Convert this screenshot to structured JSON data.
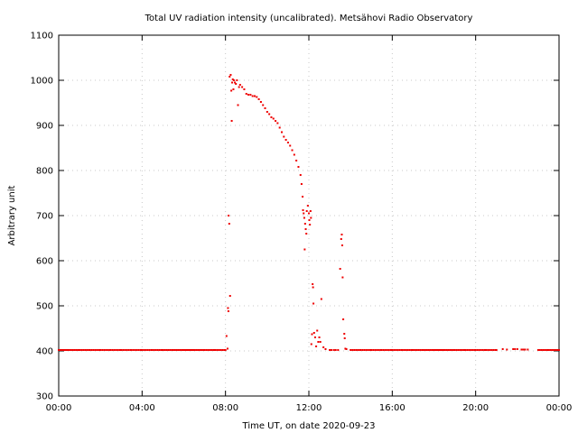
{
  "chart_data": {
    "type": "scatter",
    "title": "Total UV radiation intensity (uncalibrated). Metsähovi Radio Observatory",
    "xlabel": "Time UT, on date 2020-09-23",
    "ylabel": "Arbitrary unit",
    "xlim": [
      0,
      24
    ],
    "ylim": [
      300,
      1100
    ],
    "x_ticks": [
      0,
      4,
      8,
      12,
      16,
      20,
      24
    ],
    "x_tick_labels": [
      "00:00",
      "04:00",
      "08:00",
      "12:00",
      "16:00",
      "20:00",
      "00:00"
    ],
    "y_ticks": [
      300,
      400,
      500,
      600,
      700,
      800,
      900,
      1000,
      1100
    ],
    "y_tick_labels": [
      "300",
      "400",
      "500",
      "600",
      "700",
      "800",
      "900",
      "1000",
      "1100"
    ],
    "grid": true,
    "legend": "none",
    "series": [
      {
        "color": "#ee0000",
        "marker": "dot",
        "points": [
          [
            0.0,
            402
          ],
          [
            0.5,
            402
          ],
          [
            1.0,
            402
          ],
          [
            1.5,
            402
          ],
          [
            2.0,
            402
          ],
          [
            2.5,
            402
          ],
          [
            3.0,
            402
          ],
          [
            3.5,
            402
          ],
          [
            4.0,
            402
          ],
          [
            4.5,
            402
          ],
          [
            5.0,
            402
          ],
          [
            5.5,
            402
          ],
          [
            6.0,
            402
          ],
          [
            6.5,
            402
          ],
          [
            7.0,
            402
          ],
          [
            7.5,
            402
          ],
          [
            8.0,
            402
          ],
          [
            8.05,
            433
          ],
          [
            8.1,
            405
          ],
          [
            8.12,
            495
          ],
          [
            8.14,
            488
          ],
          [
            8.15,
            700
          ],
          [
            8.18,
            682
          ],
          [
            8.2,
            1008
          ],
          [
            8.22,
            522
          ],
          [
            8.25,
            1012
          ],
          [
            8.28,
            977
          ],
          [
            8.3,
            910
          ],
          [
            8.32,
            995
          ],
          [
            8.35,
            1002
          ],
          [
            8.38,
            980
          ],
          [
            8.4,
            1000
          ],
          [
            8.45,
            995
          ],
          [
            8.5,
            992
          ],
          [
            8.55,
            1000
          ],
          [
            8.6,
            945
          ],
          [
            8.65,
            985
          ],
          [
            8.7,
            990
          ],
          [
            8.8,
            985
          ],
          [
            8.9,
            980
          ],
          [
            9.0,
            970
          ],
          [
            9.1,
            968
          ],
          [
            9.2,
            968
          ],
          [
            9.3,
            965
          ],
          [
            9.4,
            965
          ],
          [
            9.5,
            963
          ],
          [
            9.6,
            958
          ],
          [
            9.7,
            952
          ],
          [
            9.8,
            945
          ],
          [
            9.9,
            938
          ],
          [
            10.0,
            930
          ],
          [
            10.1,
            925
          ],
          [
            10.2,
            918
          ],
          [
            10.3,
            915
          ],
          [
            10.4,
            910
          ],
          [
            10.5,
            905
          ],
          [
            10.6,
            895
          ],
          [
            10.7,
            885
          ],
          [
            10.8,
            875
          ],
          [
            10.9,
            868
          ],
          [
            11.0,
            862
          ],
          [
            11.1,
            855
          ],
          [
            11.2,
            845
          ],
          [
            11.3,
            835
          ],
          [
            11.4,
            822
          ],
          [
            11.5,
            808
          ],
          [
            11.6,
            790
          ],
          [
            11.65,
            770
          ],
          [
            11.7,
            742
          ],
          [
            11.72,
            712
          ],
          [
            11.75,
            705
          ],
          [
            11.78,
            695
          ],
          [
            11.8,
            625
          ],
          [
            11.82,
            682
          ],
          [
            11.85,
            670
          ],
          [
            11.88,
            660
          ],
          [
            11.9,
            710
          ],
          [
            11.95,
            722
          ],
          [
            12.0,
            705
          ],
          [
            12.02,
            690
          ],
          [
            12.05,
            680
          ],
          [
            12.08,
            710
          ],
          [
            12.1,
            695
          ],
          [
            12.12,
            415
          ],
          [
            12.15,
            437
          ],
          [
            12.18,
            548
          ],
          [
            12.2,
            541
          ],
          [
            12.22,
            505
          ],
          [
            12.25,
            440
          ],
          [
            12.3,
            430
          ],
          [
            12.35,
            410
          ],
          [
            12.4,
            445
          ],
          [
            12.45,
            420
          ],
          [
            12.5,
            430
          ],
          [
            12.55,
            420
          ],
          [
            12.6,
            515
          ],
          [
            12.7,
            408
          ],
          [
            12.8,
            404
          ],
          [
            13.0,
            402
          ],
          [
            13.2,
            402
          ],
          [
            13.4,
            402
          ],
          [
            13.5,
            582
          ],
          [
            13.55,
            648
          ],
          [
            13.58,
            658
          ],
          [
            13.6,
            634
          ],
          [
            13.62,
            563
          ],
          [
            13.65,
            470
          ],
          [
            13.7,
            438
          ],
          [
            13.72,
            428
          ],
          [
            13.75,
            405
          ],
          [
            13.8,
            404
          ],
          [
            14.0,
            402
          ],
          [
            14.5,
            402
          ],
          [
            15.0,
            402
          ],
          [
            15.5,
            402
          ],
          [
            16.0,
            402
          ],
          [
            16.5,
            402
          ],
          [
            17.0,
            402
          ],
          [
            17.5,
            402
          ],
          [
            18.0,
            402
          ],
          [
            18.5,
            402
          ],
          [
            19.0,
            402
          ],
          [
            19.5,
            402
          ],
          [
            20.0,
            402
          ],
          [
            20.5,
            402
          ],
          [
            21.0,
            402
          ],
          [
            21.3,
            404
          ],
          [
            21.5,
            403
          ],
          [
            21.8,
            404
          ],
          [
            22.0,
            404
          ],
          [
            22.2,
            403
          ],
          [
            22.5,
            403
          ],
          [
            23.0,
            402
          ],
          [
            23.5,
            402
          ],
          [
            24.0,
            402
          ]
        ]
      }
    ]
  }
}
